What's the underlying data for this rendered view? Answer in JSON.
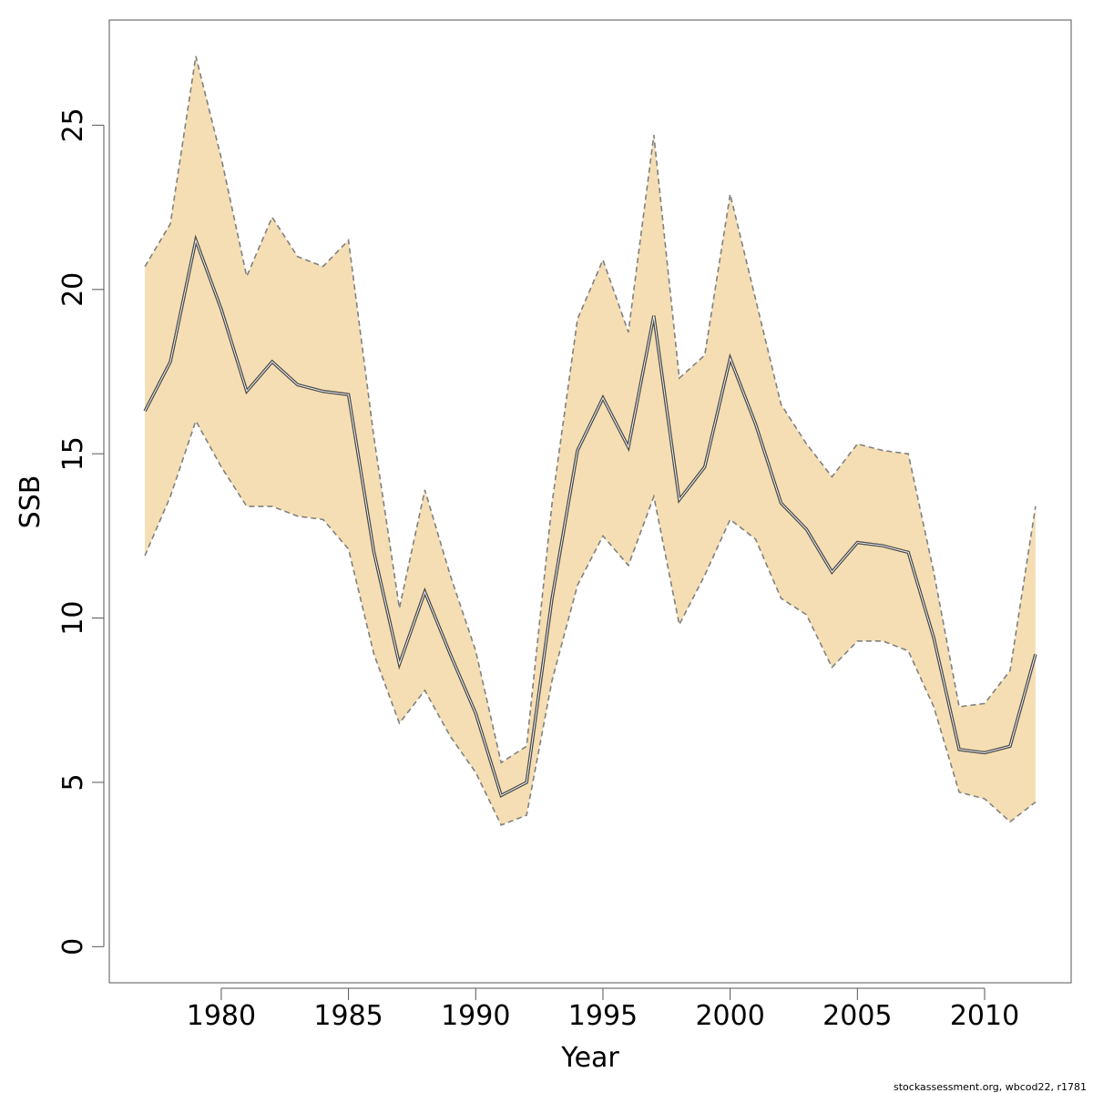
{
  "chart_data": {
    "type": "area",
    "xlabel": "Year",
    "ylabel": "SSB",
    "xlim": [
      1975.6,
      2013.4
    ],
    "ylim": [
      -1.1,
      28.2
    ],
    "x_ticks": [
      1980,
      1985,
      1990,
      1995,
      2000,
      2005,
      2010
    ],
    "y_ticks": [
      0,
      5,
      10,
      15,
      20,
      25
    ],
    "grid": false,
    "legend": "none",
    "x": [
      1977,
      1978,
      1979,
      1980,
      1981,
      1982,
      1983,
      1984,
      1985,
      1986,
      1987,
      1988,
      1989,
      1990,
      1991,
      1992,
      1993,
      1994,
      1995,
      1996,
      1997,
      1998,
      1999,
      2000,
      2001,
      2002,
      2003,
      2004,
      2005,
      2006,
      2007,
      2008,
      2009,
      2010,
      2011,
      2012
    ],
    "series": [
      {
        "role": "estimate",
        "values": [
          16.3,
          17.8,
          21.5,
          19.4,
          16.9,
          17.8,
          17.1,
          16.9,
          16.8,
          12.0,
          8.6,
          10.8,
          8.9,
          7.1,
          4.6,
          5.0,
          10.6,
          15.1,
          16.7,
          15.2,
          19.2,
          13.6,
          14.6,
          17.9,
          15.9,
          13.5,
          12.7,
          11.4,
          12.3,
          12.2,
          12.0,
          9.4,
          6.0,
          5.9,
          6.1,
          8.9
        ]
      },
      {
        "role": "upper",
        "values": [
          20.7,
          22.0,
          27.1,
          24.0,
          20.4,
          22.2,
          21.0,
          20.7,
          21.5,
          15.5,
          10.3,
          13.9,
          11.3,
          9.0,
          5.6,
          6.1,
          13.5,
          19.1,
          20.9,
          18.7,
          24.7,
          17.3,
          18.0,
          22.9,
          19.7,
          16.5,
          15.3,
          14.3,
          15.3,
          15.1,
          15.0,
          11.4,
          7.3,
          7.4,
          8.4,
          13.4
        ]
      },
      {
        "role": "lower",
        "values": [
          11.9,
          13.7,
          16.0,
          14.6,
          13.4,
          13.4,
          13.1,
          13.0,
          12.1,
          8.9,
          6.8,
          7.8,
          6.4,
          5.3,
          3.7,
          4.0,
          8.1,
          11.0,
          12.5,
          11.6,
          13.7,
          9.8,
          11.3,
          13.0,
          12.4,
          10.6,
          10.1,
          8.5,
          9.3,
          9.3,
          9.0,
          7.3,
          4.7,
          4.5,
          3.8,
          4.4
        ]
      }
    ],
    "colors": {
      "band_fill": "#F5DEB3",
      "band_edge": "#808080",
      "line": "#4D4D4D",
      "frame": "#555555"
    }
  },
  "footnote": "stockassessment.org, wbcod22, r1781"
}
